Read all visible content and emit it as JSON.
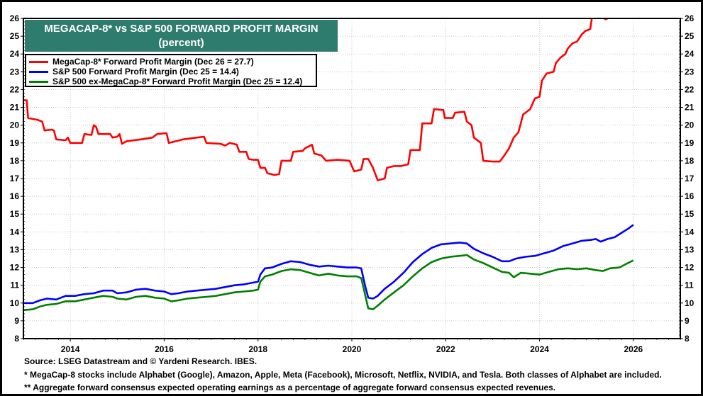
{
  "chart_data": {
    "type": "line",
    "title": "MEGACAP-8* vs S&P 500 FORWARD PROFIT MARGIN",
    "subtitle": "(percent)",
    "xlabel": "",
    "ylabel": "",
    "xlim": [
      2013,
      2027
    ],
    "ylim": [
      8,
      26
    ],
    "x_ticks": [
      "2014",
      "2016",
      "2018",
      "2020",
      "2022",
      "2024",
      "2026"
    ],
    "x_tick_values": [
      2014,
      2016,
      2018,
      2020,
      2022,
      2024,
      2026
    ],
    "y_ticks": [
      "8",
      "9",
      "10",
      "11",
      "12",
      "13",
      "14",
      "15",
      "16",
      "17",
      "18",
      "19",
      "20",
      "21",
      "22",
      "23",
      "24",
      "25",
      "26"
    ],
    "y_tick_values": [
      8,
      9,
      10,
      11,
      12,
      13,
      14,
      15,
      16,
      17,
      18,
      19,
      20,
      21,
      22,
      23,
      24,
      25,
      26
    ],
    "y_axis_sides": "both",
    "grid": true,
    "legend_placement": "top-left",
    "series": [
      {
        "name": "MegaCap-8* Forward Profit Margin (Dec 26 = 27.7)",
        "color": "#ff0000",
        "points": [
          [
            2013.0,
            21.4
          ],
          [
            2013.07,
            21.4
          ],
          [
            2013.1,
            20.4
          ],
          [
            2013.3,
            20.3
          ],
          [
            2013.4,
            20.2
          ],
          [
            2013.45,
            19.7
          ],
          [
            2013.6,
            19.75
          ],
          [
            2013.65,
            19.7
          ],
          [
            2013.7,
            19.2
          ],
          [
            2013.9,
            19.15
          ],
          [
            2013.95,
            19.3
          ],
          [
            2014.0,
            19.0
          ],
          [
            2014.25,
            19.0
          ],
          [
            2014.3,
            19.5
          ],
          [
            2014.45,
            19.45
          ],
          [
            2014.5,
            20.0
          ],
          [
            2014.55,
            19.9
          ],
          [
            2014.6,
            19.5
          ],
          [
            2014.85,
            19.5
          ],
          [
            2014.9,
            19.3
          ],
          [
            2015.0,
            19.35
          ],
          [
            2015.05,
            19.5
          ],
          [
            2015.1,
            18.95
          ],
          [
            2015.2,
            19.1
          ],
          [
            2015.5,
            19.2
          ],
          [
            2015.75,
            19.3
          ],
          [
            2015.85,
            19.5
          ],
          [
            2016.05,
            19.55
          ],
          [
            2016.1,
            19.0
          ],
          [
            2016.4,
            19.2
          ],
          [
            2016.7,
            19.3
          ],
          [
            2016.85,
            19.35
          ],
          [
            2016.9,
            19.0
          ],
          [
            2017.2,
            18.95
          ],
          [
            2017.3,
            18.85
          ],
          [
            2017.4,
            19.0
          ],
          [
            2017.55,
            18.9
          ],
          [
            2017.6,
            18.5
          ],
          [
            2017.75,
            18.5
          ],
          [
            2017.8,
            18.1
          ],
          [
            2017.9,
            18.05
          ],
          [
            2018.0,
            18.05
          ],
          [
            2018.05,
            17.6
          ],
          [
            2018.15,
            17.6
          ],
          [
            2018.2,
            17.3
          ],
          [
            2018.35,
            17.2
          ],
          [
            2018.45,
            17.25
          ],
          [
            2018.5,
            18.0
          ],
          [
            2018.7,
            18.0
          ],
          [
            2018.75,
            18.5
          ],
          [
            2018.95,
            18.55
          ],
          [
            2019.0,
            18.7
          ],
          [
            2019.15,
            18.9
          ],
          [
            2019.2,
            18.4
          ],
          [
            2019.35,
            18.3
          ],
          [
            2019.45,
            18.0
          ],
          [
            2019.7,
            18.05
          ],
          [
            2019.95,
            18.0
          ],
          [
            2020.05,
            17.4
          ],
          [
            2020.2,
            17.5
          ],
          [
            2020.25,
            18.1
          ],
          [
            2020.35,
            18.1
          ],
          [
            2020.45,
            17.6
          ],
          [
            2020.55,
            16.9
          ],
          [
            2020.7,
            17.0
          ],
          [
            2020.75,
            17.6
          ],
          [
            2020.9,
            17.7
          ],
          [
            2021.05,
            17.7
          ],
          [
            2021.2,
            17.8
          ],
          [
            2021.25,
            18.6
          ],
          [
            2021.45,
            18.6
          ],
          [
            2021.5,
            20.1
          ],
          [
            2021.7,
            20.1
          ],
          [
            2021.75,
            20.9
          ],
          [
            2021.95,
            20.85
          ],
          [
            2021.98,
            20.4
          ],
          [
            2022.15,
            20.4
          ],
          [
            2022.2,
            20.7
          ],
          [
            2022.4,
            20.75
          ],
          [
            2022.45,
            20.2
          ],
          [
            2022.55,
            20.0
          ],
          [
            2022.6,
            19.3
          ],
          [
            2022.75,
            19.0
          ],
          [
            2022.8,
            18.0
          ],
          [
            2023.0,
            17.95
          ],
          [
            2023.15,
            17.95
          ],
          [
            2023.25,
            18.3
          ],
          [
            2023.35,
            18.7
          ],
          [
            2023.45,
            19.3
          ],
          [
            2023.55,
            19.6
          ],
          [
            2023.65,
            20.6
          ],
          [
            2023.8,
            20.9
          ],
          [
            2023.9,
            21.5
          ],
          [
            2024.0,
            21.6
          ],
          [
            2024.05,
            22.5
          ],
          [
            2024.15,
            22.9
          ],
          [
            2024.3,
            23.0
          ],
          [
            2024.35,
            23.5
          ],
          [
            2024.45,
            23.8
          ],
          [
            2024.55,
            24.0
          ],
          [
            2024.6,
            24.3
          ],
          [
            2024.7,
            24.6
          ],
          [
            2024.8,
            24.7
          ],
          [
            2024.9,
            25.1
          ],
          [
            2024.98,
            25.3
          ],
          [
            2025.08,
            25.4
          ],
          [
            2025.12,
            26.1
          ],
          [
            2025.25,
            26.4
          ],
          [
            2025.35,
            26.2
          ],
          [
            2025.4,
            25.95
          ],
          [
            2025.45,
            26.0
          ]
        ]
      },
      {
        "name": "S&P 500 Forward Profit Margin (Dec 25 = 14.4)",
        "color": "#0000ff",
        "points": [
          [
            2013.0,
            10.0
          ],
          [
            2013.2,
            10.0
          ],
          [
            2013.35,
            10.15
          ],
          [
            2013.5,
            10.25
          ],
          [
            2013.7,
            10.2
          ],
          [
            2013.9,
            10.4
          ],
          [
            2014.1,
            10.4
          ],
          [
            2014.3,
            10.5
          ],
          [
            2014.5,
            10.55
          ],
          [
            2014.7,
            10.7
          ],
          [
            2014.9,
            10.7
          ],
          [
            2015.0,
            10.55
          ],
          [
            2015.2,
            10.6
          ],
          [
            2015.4,
            10.75
          ],
          [
            2015.6,
            10.8
          ],
          [
            2015.8,
            10.7
          ],
          [
            2016.0,
            10.65
          ],
          [
            2016.15,
            10.5
          ],
          [
            2016.3,
            10.55
          ],
          [
            2016.5,
            10.65
          ],
          [
            2016.7,
            10.7
          ],
          [
            2016.9,
            10.75
          ],
          [
            2017.1,
            10.8
          ],
          [
            2017.3,
            10.9
          ],
          [
            2017.5,
            11.0
          ],
          [
            2017.7,
            11.05
          ],
          [
            2017.9,
            11.15
          ],
          [
            2018.0,
            11.2
          ],
          [
            2018.05,
            11.6
          ],
          [
            2018.15,
            11.95
          ],
          [
            2018.3,
            12.0
          ],
          [
            2018.5,
            12.2
          ],
          [
            2018.7,
            12.35
          ],
          [
            2018.9,
            12.3
          ],
          [
            2019.1,
            12.15
          ],
          [
            2019.3,
            12.05
          ],
          [
            2019.5,
            12.1
          ],
          [
            2019.7,
            12.05
          ],
          [
            2019.9,
            12.0
          ],
          [
            2020.1,
            12.0
          ],
          [
            2020.2,
            11.95
          ],
          [
            2020.28,
            11.0
          ],
          [
            2020.35,
            10.3
          ],
          [
            2020.45,
            10.25
          ],
          [
            2020.55,
            10.4
          ],
          [
            2020.7,
            10.8
          ],
          [
            2020.9,
            11.2
          ],
          [
            2021.1,
            11.7
          ],
          [
            2021.3,
            12.3
          ],
          [
            2021.5,
            12.75
          ],
          [
            2021.7,
            13.1
          ],
          [
            2021.9,
            13.3
          ],
          [
            2022.1,
            13.35
          ],
          [
            2022.3,
            13.4
          ],
          [
            2022.45,
            13.35
          ],
          [
            2022.6,
            13.05
          ],
          [
            2022.8,
            12.8
          ],
          [
            2023.0,
            12.6
          ],
          [
            2023.2,
            12.35
          ],
          [
            2023.35,
            12.35
          ],
          [
            2023.5,
            12.5
          ],
          [
            2023.7,
            12.6
          ],
          [
            2023.9,
            12.65
          ],
          [
            2024.1,
            12.8
          ],
          [
            2024.3,
            12.95
          ],
          [
            2024.5,
            13.2
          ],
          [
            2024.7,
            13.35
          ],
          [
            2024.9,
            13.5
          ],
          [
            2025.1,
            13.55
          ],
          [
            2025.2,
            13.6
          ],
          [
            2025.3,
            13.45
          ],
          [
            2025.45,
            13.6
          ],
          [
            2025.6,
            13.7
          ],
          [
            2025.75,
            13.95
          ],
          [
            2025.9,
            14.2
          ],
          [
            2026.0,
            14.4
          ]
        ]
      },
      {
        "name": "S&P 500 ex-MegaCap-8* Forward Profit Margin (Dec 25 = 12.4)",
        "color": "#008000",
        "points": [
          [
            2013.0,
            9.6
          ],
          [
            2013.2,
            9.65
          ],
          [
            2013.35,
            9.8
          ],
          [
            2013.5,
            9.9
          ],
          [
            2013.7,
            9.95
          ],
          [
            2013.9,
            10.1
          ],
          [
            2014.1,
            10.1
          ],
          [
            2014.3,
            10.2
          ],
          [
            2014.5,
            10.3
          ],
          [
            2014.7,
            10.4
          ],
          [
            2014.9,
            10.35
          ],
          [
            2015.0,
            10.25
          ],
          [
            2015.2,
            10.2
          ],
          [
            2015.4,
            10.35
          ],
          [
            2015.6,
            10.4
          ],
          [
            2015.8,
            10.3
          ],
          [
            2016.0,
            10.25
          ],
          [
            2016.15,
            10.1
          ],
          [
            2016.3,
            10.15
          ],
          [
            2016.5,
            10.25
          ],
          [
            2016.7,
            10.3
          ],
          [
            2016.9,
            10.35
          ],
          [
            2017.1,
            10.4
          ],
          [
            2017.3,
            10.5
          ],
          [
            2017.5,
            10.6
          ],
          [
            2017.7,
            10.65
          ],
          [
            2017.9,
            10.7
          ],
          [
            2018.0,
            10.75
          ],
          [
            2018.05,
            11.2
          ],
          [
            2018.15,
            11.5
          ],
          [
            2018.3,
            11.6
          ],
          [
            2018.5,
            11.8
          ],
          [
            2018.7,
            11.9
          ],
          [
            2018.9,
            11.85
          ],
          [
            2019.1,
            11.7
          ],
          [
            2019.3,
            11.55
          ],
          [
            2019.5,
            11.65
          ],
          [
            2019.7,
            11.55
          ],
          [
            2019.9,
            11.5
          ],
          [
            2020.1,
            11.5
          ],
          [
            2020.2,
            11.4
          ],
          [
            2020.28,
            10.5
          ],
          [
            2020.35,
            9.7
          ],
          [
            2020.45,
            9.65
          ],
          [
            2020.55,
            9.85
          ],
          [
            2020.7,
            10.2
          ],
          [
            2020.9,
            10.6
          ],
          [
            2021.1,
            11.0
          ],
          [
            2021.3,
            11.5
          ],
          [
            2021.5,
            11.95
          ],
          [
            2021.7,
            12.3
          ],
          [
            2021.9,
            12.5
          ],
          [
            2022.1,
            12.6
          ],
          [
            2022.3,
            12.65
          ],
          [
            2022.45,
            12.7
          ],
          [
            2022.6,
            12.45
          ],
          [
            2022.8,
            12.25
          ],
          [
            2023.0,
            12.0
          ],
          [
            2023.2,
            11.75
          ],
          [
            2023.35,
            11.7
          ],
          [
            2023.45,
            11.45
          ],
          [
            2023.6,
            11.7
          ],
          [
            2023.8,
            11.65
          ],
          [
            2024.0,
            11.6
          ],
          [
            2024.2,
            11.75
          ],
          [
            2024.4,
            11.9
          ],
          [
            2024.6,
            11.95
          ],
          [
            2024.8,
            11.9
          ],
          [
            2025.0,
            11.95
          ],
          [
            2025.2,
            11.85
          ],
          [
            2025.35,
            11.8
          ],
          [
            2025.5,
            11.95
          ],
          [
            2025.7,
            12.0
          ],
          [
            2025.85,
            12.2
          ],
          [
            2026.0,
            12.4
          ]
        ]
      }
    ],
    "footnotes": [
      "Source: LSEG Datastream and © Yardeni Research. IBES.",
      "* MegaCap-8 stocks include Alphabet (Google), Amazon, Apple, Meta (Facebook), Microsoft, Netflix, NVIDIA, and Tesla. Both classes of Alphabet are included.",
      "** Aggregate forward consensus expected operating earnings as a percentage of aggregate forward consensus expected revenues."
    ]
  },
  "colors": {
    "title_background": "#2e7c6e",
    "title_text": "#ffffff"
  }
}
